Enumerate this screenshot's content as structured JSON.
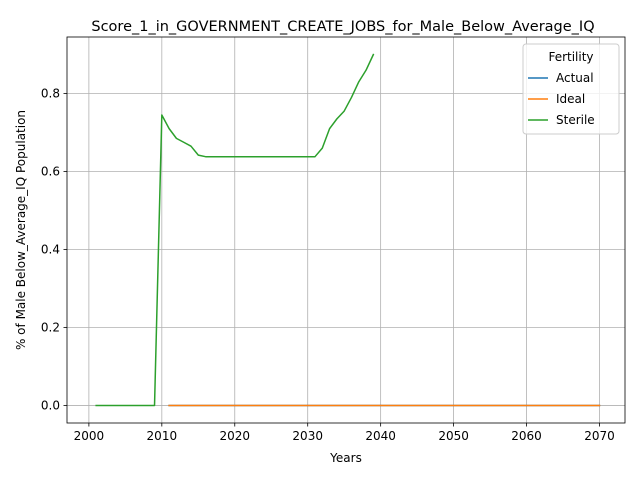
{
  "chart_data": {
    "type": "line",
    "title": "Score_1_in_GOVERNMENT_CREATE_JOBS_for_Male_Below_Average_IQ",
    "xlabel": "Years",
    "ylabel": "% of Male Below_Average_IQ Population",
    "xlim": [
      1997,
      2073.5
    ],
    "ylim": [
      -0.045,
      0.945
    ],
    "xticks": [
      2000,
      2010,
      2020,
      2030,
      2040,
      2050,
      2060,
      2070
    ],
    "yticks": [
      0.0,
      0.2,
      0.4,
      0.6,
      0.8
    ],
    "xtick_labels": [
      "2000",
      "2010",
      "2020",
      "2030",
      "2040",
      "2050",
      "2060",
      "2070"
    ],
    "ytick_labels": [
      "0.0",
      "0.2",
      "0.4",
      "0.6",
      "0.8"
    ],
    "grid": true,
    "legend": {
      "title": "Fertility",
      "placement": "top-right"
    },
    "series": [
      {
        "name": "Actual",
        "color": "#1f77b4",
        "x": [
          2011,
          2070
        ],
        "y": [
          0.0,
          0.0
        ]
      },
      {
        "name": "Ideal",
        "color": "#ff7f0e",
        "x": [
          2011,
          2070
        ],
        "y": [
          0.0,
          0.0
        ]
      },
      {
        "name": "Sterile",
        "color": "#2ca02c",
        "x": [
          2001,
          2002,
          2003,
          2004,
          2005,
          2006,
          2007,
          2008,
          2009,
          2010,
          2011,
          2012,
          2013,
          2014,
          2015,
          2016,
          2017,
          2018,
          2019,
          2020,
          2021,
          2022,
          2023,
          2024,
          2025,
          2026,
          2027,
          2028,
          2029,
          2030,
          2031,
          2032,
          2033,
          2034,
          2035,
          2036,
          2037,
          2038,
          2039
        ],
        "y": [
          0.0,
          0.0,
          0.0,
          0.0,
          0.0,
          0.0,
          0.0,
          0.0,
          0.0,
          0.745,
          0.71,
          0.685,
          0.675,
          0.665,
          0.642,
          0.638,
          0.638,
          0.638,
          0.638,
          0.638,
          0.638,
          0.638,
          0.638,
          0.638,
          0.638,
          0.638,
          0.638,
          0.638,
          0.638,
          0.638,
          0.638,
          0.66,
          0.71,
          0.735,
          0.755,
          0.79,
          0.83,
          0.86,
          0.9
        ]
      }
    ]
  }
}
